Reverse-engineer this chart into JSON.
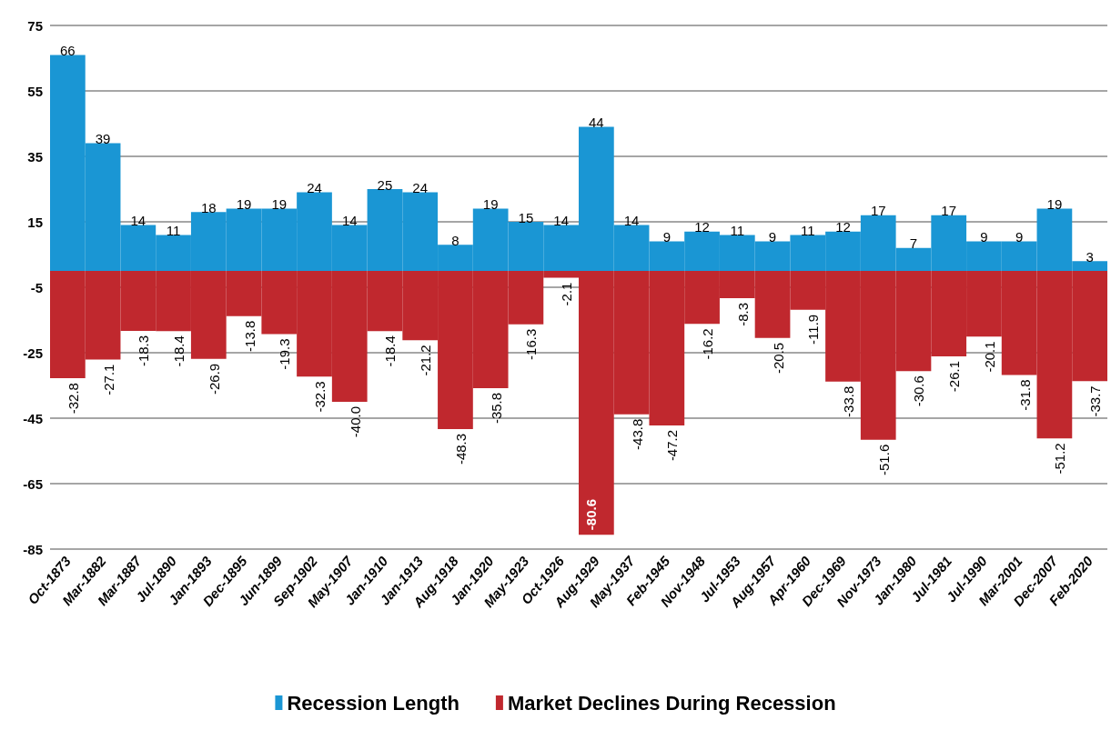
{
  "chart_data": {
    "type": "bar",
    "stacked": true,
    "grid": "y",
    "legend": "bottom",
    "categories": [
      "Oct-1873",
      "Mar-1882",
      "Mar-1887",
      "Jul-1890",
      "Jan-1893",
      "Dec-1895",
      "Jun-1899",
      "Sep-1902",
      "May-1907",
      "Jan-1910",
      "Jan-1913",
      "Aug-1918",
      "Jan-1920",
      "May-1923",
      "Oct-1926",
      "Aug-1929",
      "May-1937",
      "Feb-1945",
      "Nov-1948",
      "Jul-1953",
      "Aug-1957",
      "Apr-1960",
      "Dec-1969",
      "Nov-1973",
      "Jan-1980",
      "Jul-1981",
      "Jul-1990",
      "Mar-2001",
      "Dec-2007",
      "Feb-2020"
    ],
    "ylim": [
      -85,
      75
    ],
    "yticks": [
      -85,
      -65,
      -45,
      -25,
      -5,
      15,
      35,
      55,
      75
    ],
    "series": [
      {
        "name": "Recession Length",
        "color": "#1a96d4",
        "values": [
          66,
          39,
          14,
          11,
          18,
          19,
          19,
          24,
          14,
          25,
          24,
          8,
          19,
          15,
          14,
          44,
          14,
          9,
          12,
          11,
          9,
          11,
          12,
          17,
          7,
          17,
          9,
          9,
          19,
          3
        ],
        "value_labels": [
          "66",
          "39",
          "14",
          "11",
          "18",
          "19",
          "19",
          "24",
          "14",
          "25",
          "24",
          "8",
          "19",
          "15",
          "14",
          "44",
          "14",
          "9",
          "12",
          "11",
          "9",
          "11",
          "12",
          "17",
          "7",
          "17",
          "9",
          "9",
          "19",
          "3"
        ]
      },
      {
        "name": "Market Declines During Recession",
        "color": "#c0282e",
        "values": [
          -32.8,
          -27.1,
          -18.3,
          -18.4,
          -26.9,
          -13.8,
          -19.3,
          -32.3,
          -40.0,
          -18.4,
          -21.2,
          -48.3,
          -35.8,
          -16.3,
          -2.1,
          -80.6,
          -43.8,
          -47.2,
          -16.2,
          -8.3,
          -20.5,
          -11.9,
          -33.8,
          -51.6,
          -30.6,
          -26.1,
          -20.1,
          -31.8,
          -51.2,
          -33.7
        ],
        "value_labels": [
          "-32.8",
          "-27.1",
          "-18.3",
          "-18.4",
          "-26.9",
          "-13.8",
          "-19.3",
          "-32.3",
          "-40.0",
          "-18.4",
          "-21.2",
          "-48.3",
          "-35.8",
          "-16.3",
          "-2.1",
          "-80.6",
          "-43.8",
          "-47.2",
          "-16.2",
          "-8.3",
          "-20.5",
          "-11.9",
          "-33.8",
          "-51.6",
          "-30.6",
          "-26.1",
          "-20.1",
          "-31.8",
          "-51.2",
          "-33.7"
        ]
      }
    ]
  }
}
